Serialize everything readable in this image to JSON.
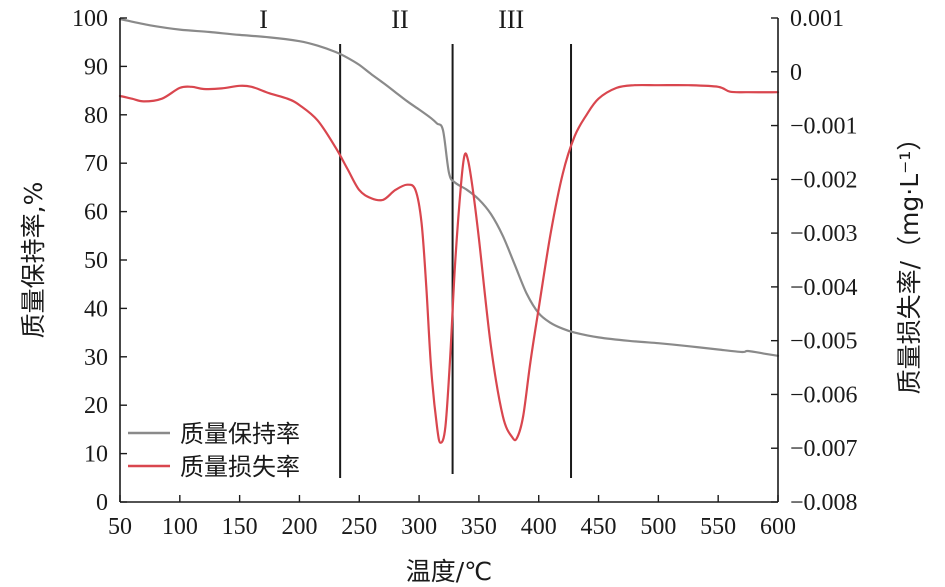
{
  "chart_data": {
    "type": "line",
    "xlabel": "温度/℃",
    "y_left_label": "质量保持率,%",
    "y_right_label": "质量损失率/（mg·L⁻¹）",
    "xlim": [
      50,
      600
    ],
    "y_left_lim": [
      0,
      100
    ],
    "y_right_lim": [
      -0.008,
      0.001
    ],
    "x_ticks": [
      "50",
      "100",
      "150",
      "200",
      "250",
      "300",
      "350",
      "400",
      "450",
      "500",
      "550",
      "600"
    ],
    "y_left_ticks": [
      "0",
      "10",
      "20",
      "30",
      "40",
      "50",
      "60",
      "70",
      "80",
      "90",
      "100"
    ],
    "y_right_ticks": [
      "−0.008",
      "−0.007",
      "−0.006",
      "−0.005",
      "−0.004",
      "−0.003",
      "−0.002",
      "−0.001",
      "0",
      "0.001"
    ],
    "regions": [
      {
        "label": "I",
        "x": 170
      },
      {
        "label": "II",
        "x": 284
      },
      {
        "label": "III",
        "x": 377
      }
    ],
    "dividers": [
      234,
      328,
      427
    ],
    "colors": {
      "mass_retention": "#8a8a8a",
      "mass_loss_rate": "#d9464e",
      "axis": "#1a1a1a"
    },
    "legend_position": "bottom-left",
    "series": [
      {
        "name": "质量保持率",
        "axis": "left",
        "x": [
          50,
          75,
          100,
          125,
          150,
          175,
          200,
          215,
          230,
          240,
          250,
          260,
          270,
          280,
          290,
          300,
          310,
          315,
          320,
          325,
          330,
          340,
          350,
          360,
          370,
          380,
          390,
          400,
          410,
          420,
          430,
          450,
          475,
          500,
          525,
          550,
          570,
          575,
          590,
          600
        ],
        "y": [
          99.8,
          98.5,
          97.6,
          97.1,
          96.5,
          96.0,
          95.2,
          94.3,
          93.0,
          91.8,
          90.3,
          88.4,
          86.6,
          84.7,
          82.8,
          81.1,
          79.3,
          78.2,
          76.8,
          68.0,
          66.0,
          64.5,
          62.5,
          59.5,
          55.0,
          49.0,
          43.0,
          39.0,
          37.0,
          35.8,
          35.0,
          34.0,
          33.3,
          32.8,
          32.2,
          31.5,
          31.0,
          31.2,
          30.6,
          30.2
        ]
      },
      {
        "name": "质量损失率",
        "axis": "right",
        "x": [
          50,
          60,
          70,
          85,
          100,
          110,
          120,
          135,
          150,
          160,
          175,
          190,
          200,
          215,
          230,
          240,
          250,
          260,
          270,
          280,
          290,
          297,
          302,
          306,
          310,
          315,
          318,
          322,
          326,
          330,
          335,
          338,
          341,
          345,
          350,
          360,
          370,
          378,
          382,
          387,
          393,
          400,
          410,
          420,
          430,
          440,
          450,
          465,
          480,
          500,
          525,
          550,
          560,
          575,
          600
        ],
        "y": [
          -0.00045,
          -0.0005,
          -0.00055,
          -0.0005,
          -0.0003,
          -0.00028,
          -0.00032,
          -0.00031,
          -0.00026,
          -0.00028,
          -0.0004,
          -0.0005,
          -0.00062,
          -0.0009,
          -0.0014,
          -0.0018,
          -0.0022,
          -0.00235,
          -0.00238,
          -0.0022,
          -0.0021,
          -0.0022,
          -0.0028,
          -0.004,
          -0.0055,
          -0.0066,
          -0.0069,
          -0.0066,
          -0.0053,
          -0.0036,
          -0.0021,
          -0.00155,
          -0.00165,
          -0.0022,
          -0.0031,
          -0.0051,
          -0.0064,
          -0.0068,
          -0.0068,
          -0.0064,
          -0.0054,
          -0.0044,
          -0.003,
          -0.0019,
          -0.0012,
          -0.0008,
          -0.0005,
          -0.0003,
          -0.00025,
          -0.00025,
          -0.00025,
          -0.00028,
          -0.00037,
          -0.00038,
          -0.00038
        ]
      }
    ]
  }
}
